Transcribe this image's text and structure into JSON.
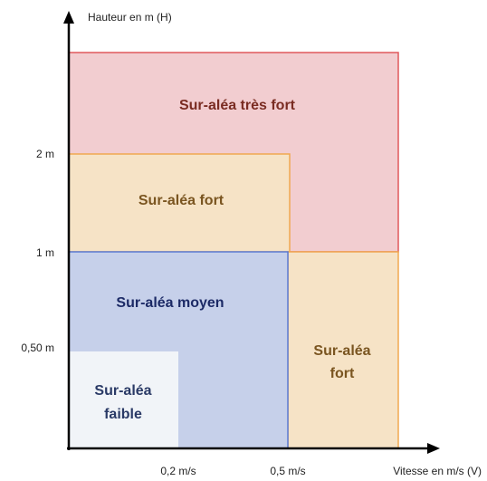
{
  "axes": {
    "y_label": "Hauteur en m (H)",
    "x_label": "Vitesse en m/s (V)",
    "y_ticks": [
      "2 m",
      "1 m",
      "0,50 m"
    ],
    "x_ticks": [
      "0,2 m/s",
      "0,5 m/s"
    ]
  },
  "zones": [
    {
      "lines": [
        "Sur-aléa très fort"
      ]
    },
    {
      "lines": [
        "Sur-aléa fort"
      ]
    },
    {
      "lines": [
        "Sur-aléa moyen"
      ]
    },
    {
      "lines": [
        "Sur-aléa",
        "faible"
      ]
    },
    {
      "lines": [
        "Sur-aléa",
        "fort"
      ]
    }
  ]
}
